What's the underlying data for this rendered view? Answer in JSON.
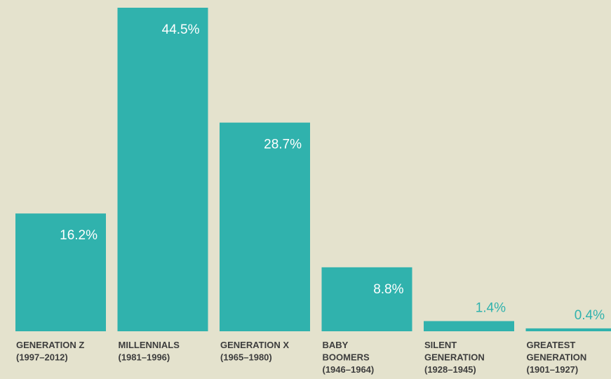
{
  "chart_data": {
    "type": "bar",
    "categories": [
      [
        "GENERATION Z",
        "(1997–2012)"
      ],
      [
        "MILLENNIALS",
        "(1981–1996)"
      ],
      [
        "GENERATION X",
        "(1965–1980)"
      ],
      [
        "BABY",
        "BOOMERS",
        "(1946–1964)"
      ],
      [
        "SILENT",
        "GENERATION",
        "(1928–1945)"
      ],
      [
        "GREATEST",
        "GENERATION",
        "(1901–1927)"
      ]
    ],
    "values": [
      16.2,
      44.5,
      28.7,
      8.8,
      1.4,
      0.4
    ],
    "value_labels": [
      "16.2%",
      "44.5%",
      "28.7%",
      "8.8%",
      "1.4%",
      "0.4%"
    ],
    "color": "#30b2ad"
  }
}
